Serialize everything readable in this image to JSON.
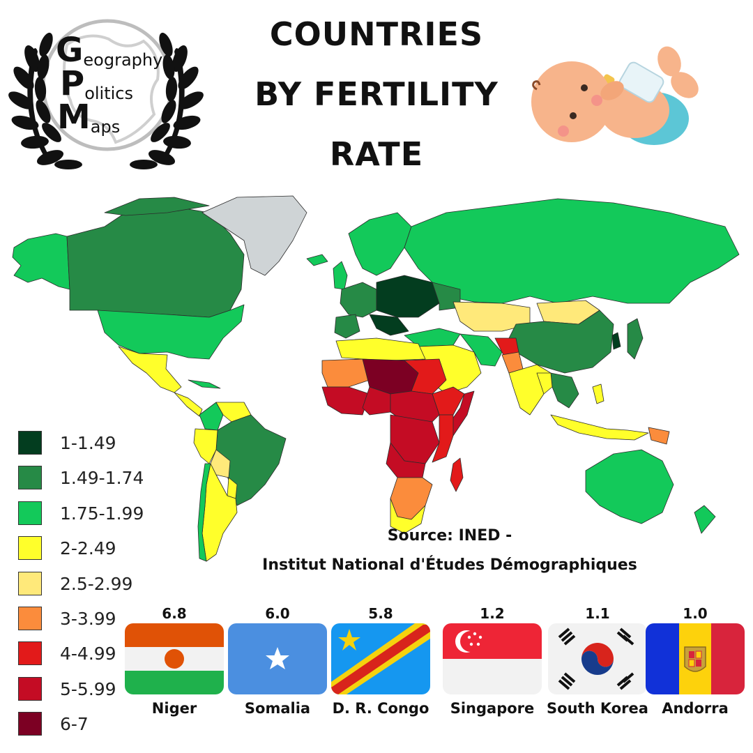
{
  "title": {
    "line1": "COUNTRIES",
    "line2": "BY FERTILITY",
    "line3": "RATE"
  },
  "logo": {
    "letters": [
      "G",
      "P",
      "M"
    ],
    "words": [
      "eography",
      "olitics",
      "aps"
    ]
  },
  "source": {
    "line1": "Source: INED -",
    "line2": "Institut National d'Études Démographiques"
  },
  "legend": [
    {
      "label": "1-1.49",
      "color": "#033d1f"
    },
    {
      "label": "1.49-1.74",
      "color": "#268a46"
    },
    {
      "label": "1.75-1.99",
      "color": "#13c95a"
    },
    {
      "label": "2-2.49",
      "color": "#ffff2b"
    },
    {
      "label": "2.5-2.99",
      "color": "#ffe97a"
    },
    {
      "label": "3-3.99",
      "color": "#fb8c3c"
    },
    {
      "label": "4-4.99",
      "color": "#e21a1a"
    },
    {
      "label": "5-5.99",
      "color": "#c40c24"
    },
    {
      "label": "6-7",
      "color": "#7c0023"
    }
  ],
  "highlights": [
    {
      "value": "6.8",
      "country": "Niger",
      "flag": "niger-flag"
    },
    {
      "value": "6.0",
      "country": "Somalia",
      "flag": "somalia-flag"
    },
    {
      "value": "5.8",
      "country": "D. R. Congo",
      "flag": "dr-congo-flag"
    },
    {
      "value": "1.2",
      "country": "Singapore",
      "flag": "singapore-flag"
    },
    {
      "value": "1.1",
      "country": "South Korea",
      "flag": "south-korea-flag"
    },
    {
      "value": "1.0",
      "country": "Andorra",
      "flag": "andorra-flag"
    }
  ],
  "colors": {
    "no_data": "#cfd4d6",
    "ocean": "#ffffff",
    "border": "#2b2b2b"
  }
}
